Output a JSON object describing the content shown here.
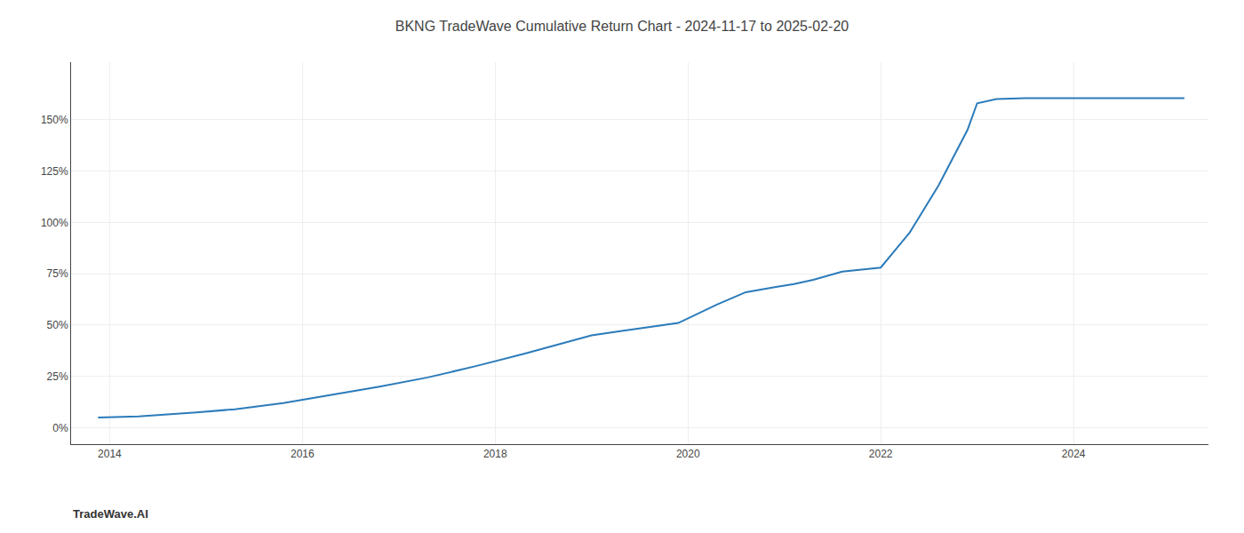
{
  "chart_data": {
    "type": "line",
    "title": "BKNG TradeWave Cumulative Return Chart - 2024-11-17 to 2025-02-20",
    "annotations": [
      "TradeWave.AI"
    ],
    "x": [
      2013.88,
      2014.0,
      2014.3,
      2014.9,
      2015.3,
      2015.8,
      2016.3,
      2016.8,
      2017.3,
      2017.8,
      2018.3,
      2018.6,
      2019.0,
      2019.3,
      2019.6,
      2019.9,
      2020.3,
      2020.6,
      2020.9,
      2021.1,
      2021.3,
      2021.6,
      2022.0,
      2022.3,
      2022.6,
      2022.9,
      2023.0,
      2023.2,
      2023.5,
      2024.0,
      2024.5,
      2025.15
    ],
    "values": [
      5.0,
      5.2,
      5.5,
      7.5,
      9.0,
      12.0,
      16.0,
      20.0,
      24.5,
      30.0,
      36.0,
      40.0,
      45.0,
      47.0,
      49.0,
      51.0,
      60.0,
      66.0,
      68.5,
      70.0,
      72.0,
      76.0,
      78.0,
      95.0,
      118.0,
      145.0,
      158.0,
      160.0,
      160.5,
      160.5,
      160.5,
      160.5
    ],
    "color": "#2b7bba",
    "xlim": [
      2013.6,
      2025.4
    ],
    "xticks": [
      2014,
      2016,
      2018,
      2020,
      2022,
      2024
    ],
    "ylim": [
      -8,
      178
    ],
    "yticks": [
      {
        "value": 0,
        "label": "0%"
      },
      {
        "value": 25,
        "label": "25%"
      },
      {
        "value": 50,
        "label": "50%"
      },
      {
        "value": 75,
        "label": "75%"
      },
      {
        "value": 100,
        "label": "100%"
      },
      {
        "value": 125,
        "label": "125%"
      },
      {
        "value": 150,
        "label": "150%"
      }
    ],
    "grid": true
  }
}
